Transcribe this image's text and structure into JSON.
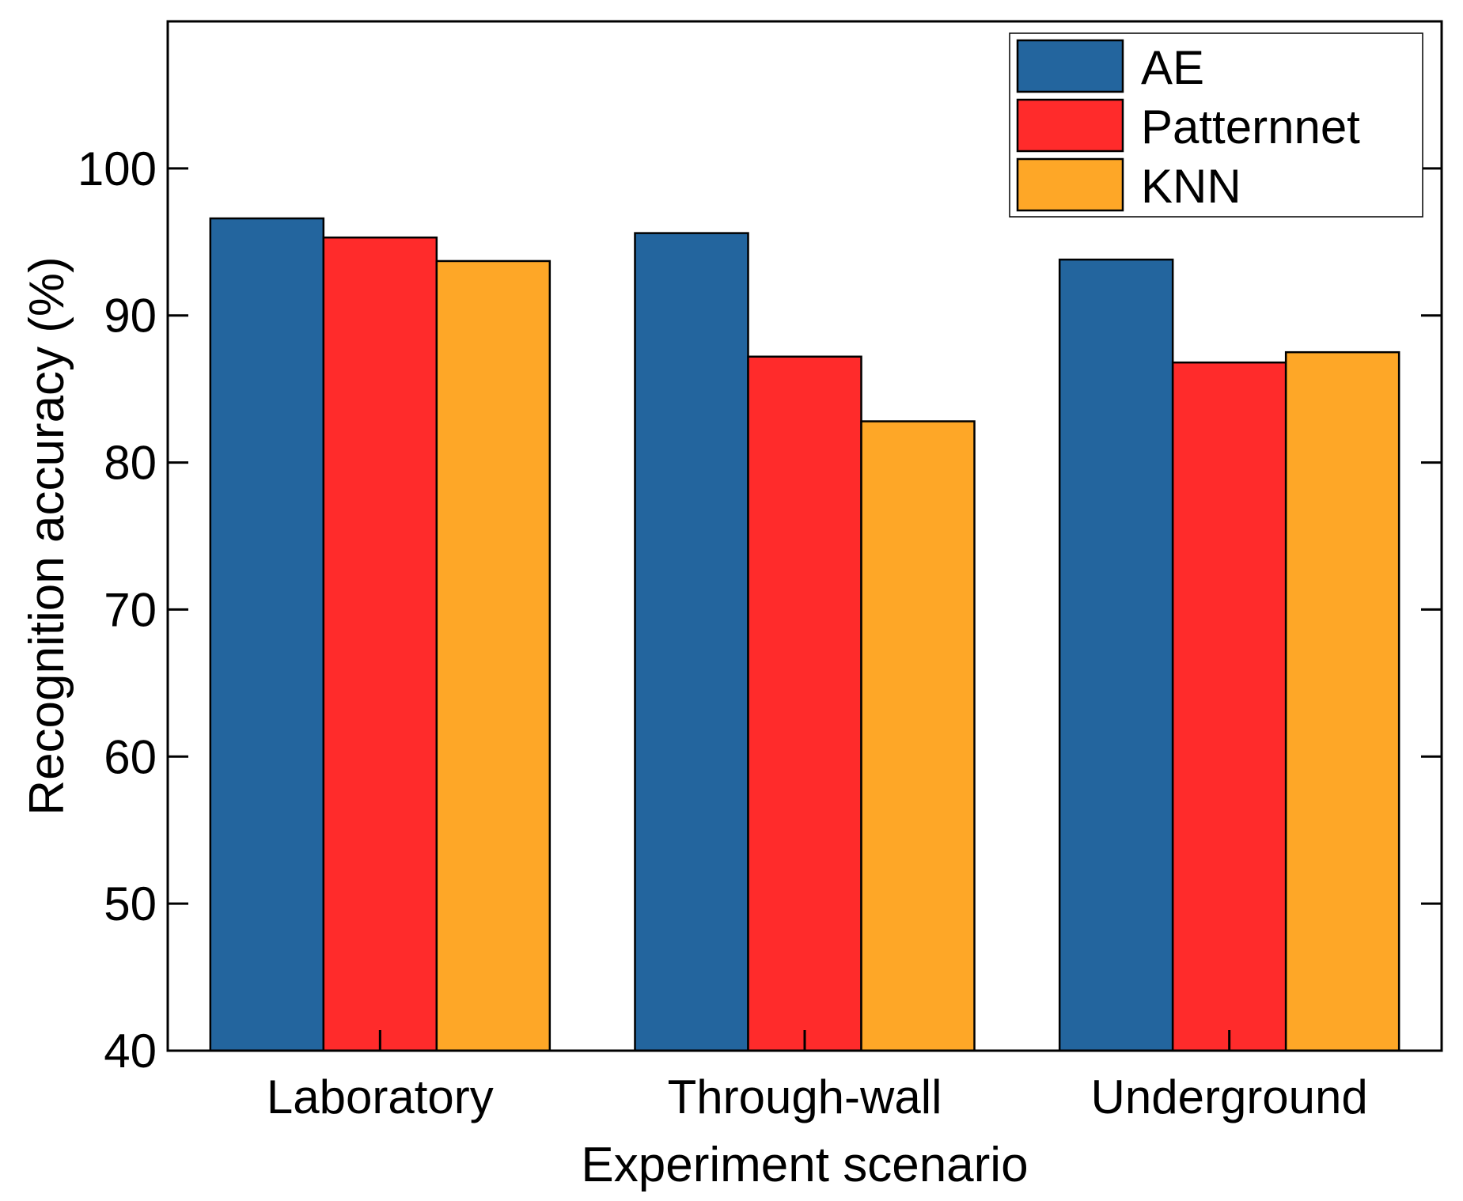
{
  "chart_data": {
    "type": "bar",
    "title": "",
    "xlabel": "Experiment scenario",
    "ylabel": "Recognition accuracy (%)",
    "ylim": [
      40,
      110
    ],
    "yticks": [
      40,
      50,
      60,
      70,
      80,
      90,
      100
    ],
    "categories": [
      "Laboratory",
      "Through-wall",
      "Underground"
    ],
    "series": [
      {
        "name": "AE",
        "color": "#23659e",
        "values": [
          96.6,
          95.6,
          93.8
        ]
      },
      {
        "name": "Patternnet",
        "color": "#ff2b2b",
        "values": [
          95.3,
          87.2,
          86.8
        ]
      },
      {
        "name": "KNN",
        "color": "#fea727",
        "values": [
          93.7,
          82.8,
          87.5
        ]
      }
    ],
    "legend_position": "top-right",
    "grid": false
  }
}
